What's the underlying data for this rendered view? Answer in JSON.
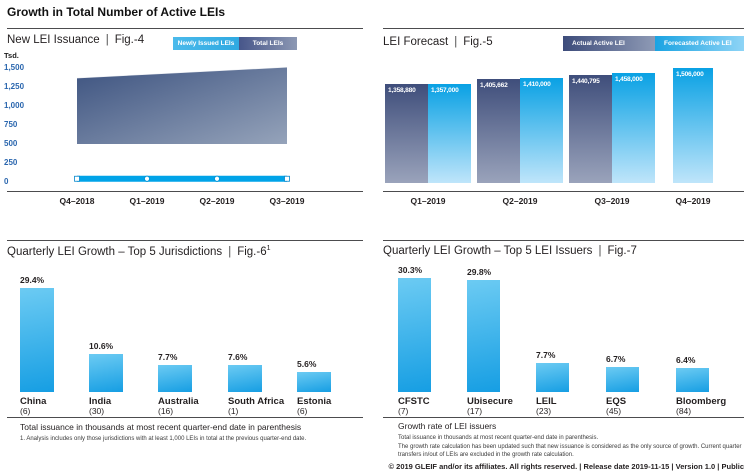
{
  "page": {
    "title": "Growth in Total Number of Active LEIs",
    "sep": "|",
    "footer": "© 2019 GLEIF and/or its affiliates. All rights reserved.  |  Release date 2019-11-15  |  Version 1.0  |  Public"
  },
  "colors": {
    "accent_cyan": "#00A3E8",
    "accent_navy": "#3F4E7B",
    "bar_cyan_top": "#6CCBF3",
    "bar_cyan_bottom": "#169EE3",
    "tick_blue": "#2A66AE"
  },
  "chart_data": [
    {
      "id": "fig4",
      "type": "area",
      "title": "New LEI Issuance",
      "fig_label": "Fig.-4",
      "y_unit": "Tsd.",
      "ylim": [
        0,
        1500
      ],
      "y_ticks": [
        "1,500",
        "1,250",
        "1,000",
        "750",
        "500",
        "250",
        "0"
      ],
      "categories": [
        "Q4–2018",
        "Q1–2019",
        "Q2–2019",
        "Q3–2019"
      ],
      "legend": [
        "Newly Issued LEIs",
        "Total LEIs"
      ],
      "series": [
        {
          "name": "Newly Issued LEIs",
          "values_estimated_tsd": [
            55,
            55,
            55,
            55
          ]
        },
        {
          "name": "Total LEIs",
          "values_estimated_tsd": [
            1359,
            1407,
            1453,
            1500
          ]
        }
      ],
      "grid": false,
      "legend_position": "top-right"
    },
    {
      "id": "fig5",
      "type": "bar",
      "title": "LEI Forecast",
      "fig_label": "Fig.-5",
      "categories": [
        "Q1–2019",
        "Q2–2019",
        "Q3–2019",
        "Q4–2019"
      ],
      "legend": [
        "Actual Active LEI",
        "Forecasted Active LEI"
      ],
      "series": [
        {
          "name": "Actual Active LEI",
          "values": [
            1358880,
            1405662,
            1440795,
            null
          ],
          "labels": [
            "1,358,880",
            "1,405,662",
            "1,440,795",
            null
          ]
        },
        {
          "name": "Forecasted Active LEI",
          "values": [
            1357000,
            1410000,
            1458000,
            1506000
          ],
          "labels": [
            "1,357,000",
            "1,410,000",
            "1,458,000",
            "1,506,000"
          ]
        }
      ],
      "grid": false,
      "legend_position": "top-right"
    },
    {
      "id": "fig6",
      "type": "bar",
      "title": "Quarterly LEI Growth – Top 5 Jurisdictions",
      "fig_label": "Fig.-6",
      "fig_superscript": "1",
      "categories": [
        "China",
        "India",
        "Australia",
        "South Africa",
        "Estonia"
      ],
      "totals": [
        "(6)",
        "(30)",
        "(16)",
        "(1)",
        "(6)"
      ],
      "values": [
        29.4,
        10.6,
        7.7,
        7.6,
        5.6
      ],
      "value_labels": [
        "29.4%",
        "10.6%",
        "7.7%",
        "7.6%",
        "5.6%"
      ],
      "footnote": "Total issuance in thousands at most recent quarter-end date in parenthesis",
      "footnote_small": "1. Analysis includes only those jurisdictions with at least 1,000 LEIs in total at the previous quarter-end date.",
      "grid": false
    },
    {
      "id": "fig7",
      "type": "bar",
      "title": "Quarterly LEI Growth – Top 5 LEI Issuers",
      "fig_label": "Fig.-7",
      "categories": [
        "CFSTC",
        "Ubisecure",
        "LEIL",
        "EQS",
        "Bloomberg"
      ],
      "totals": [
        "(7)",
        "(17)",
        "(23)",
        "(45)",
        "(84)"
      ],
      "values": [
        30.3,
        29.8,
        7.7,
        6.7,
        6.4
      ],
      "value_labels": [
        "30.3%",
        "29.8%",
        "7.7%",
        "6.7%",
        "6.4%"
      ],
      "footnote_heading": "Growth rate of LEI issuers",
      "footnotes": [
        "Total issuance in thousands at most recent quarter-end date in parenthesis.",
        "The growth rate calculation has been updated such that new issuance is considered as the only source of growth. Current quarter transfers in/out of LEIs are excluded in the growth rate calculation."
      ],
      "grid": false
    }
  ]
}
